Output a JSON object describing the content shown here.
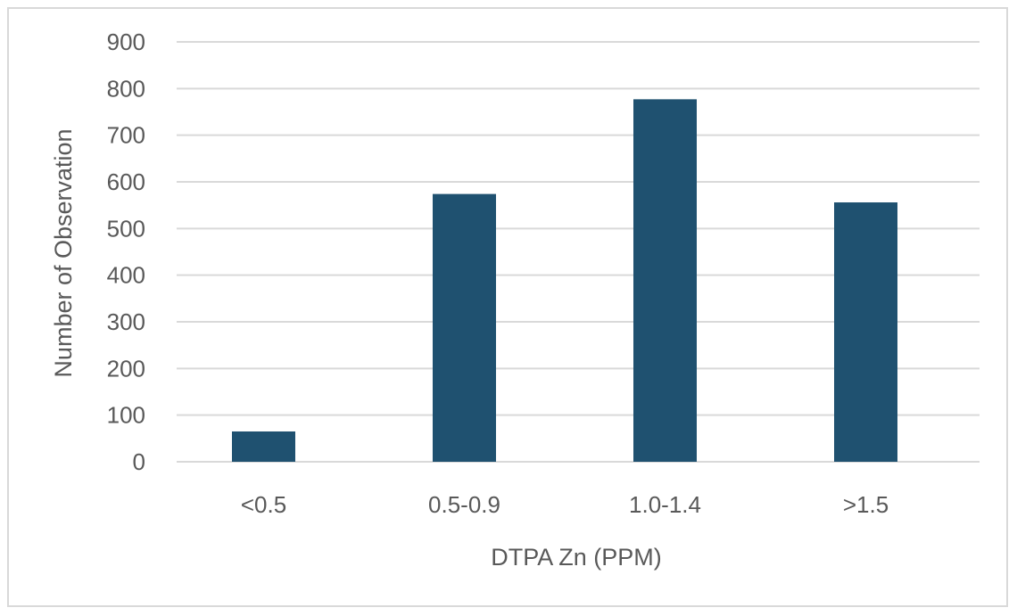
{
  "chart_data": {
    "type": "bar",
    "title": "",
    "xlabel": "DTPA Zn (PPM)",
    "ylabel": "Number of Observation",
    "categories": [
      "<0.5",
      "0.5-0.9",
      "1.0-1.4",
      ">1.5"
    ],
    "values": [
      65,
      574,
      777,
      556
    ],
    "ylim": [
      0,
      900
    ],
    "yticks": [
      0,
      100,
      200,
      300,
      400,
      500,
      600,
      700,
      800,
      900
    ],
    "grid": true,
    "legend": "none",
    "bar_color": "#1f5170",
    "grid_color": "#d9d9d9",
    "text_color": "#595959"
  }
}
